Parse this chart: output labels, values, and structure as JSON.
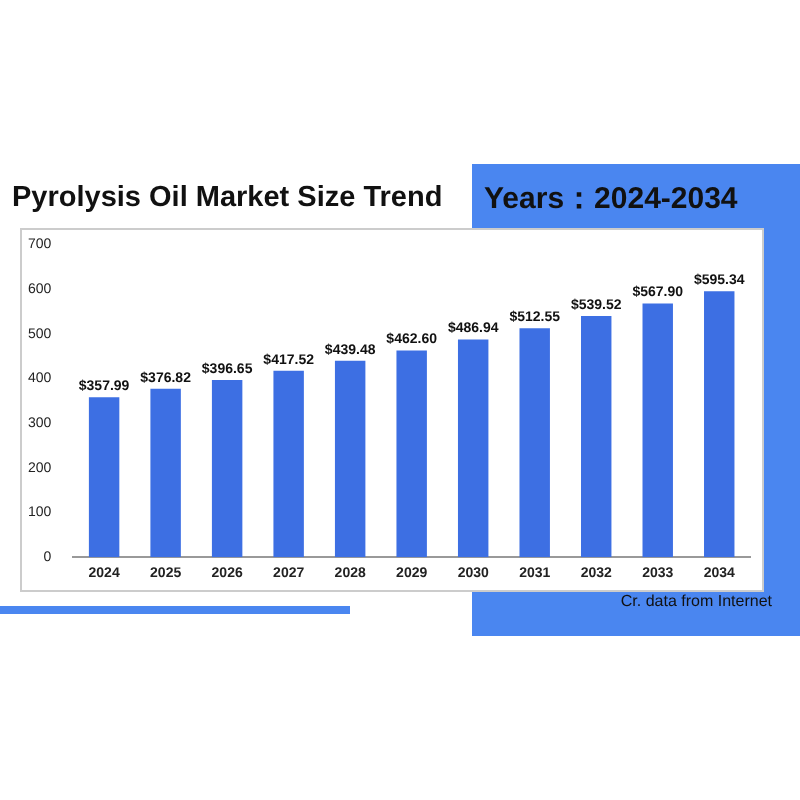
{
  "chart_data": {
    "type": "bar",
    "title": "Pyrolysis Oil Market Size Trend",
    "subtitle": "Years：2024-2034",
    "categories": [
      "2024",
      "2025",
      "2026",
      "2027",
      "2028",
      "2029",
      "2030",
      "2031",
      "2032",
      "2033",
      "2034"
    ],
    "values": [
      357.99,
      376.82,
      396.65,
      417.52,
      439.48,
      462.6,
      486.94,
      512.55,
      539.52,
      567.9,
      595.34
    ],
    "value_labels": [
      "$357.99",
      "$376.82",
      "$396.65",
      "$417.52",
      "$439.48",
      "$462.60",
      "$486.94",
      "$512.55",
      "$539.52",
      "$567.90",
      "$595.34"
    ],
    "color": "#3d6fe3",
    "ylim": [
      0,
      700
    ],
    "yticks": [
      0,
      100,
      200,
      300,
      400,
      500,
      600,
      700
    ],
    "grid": false,
    "legend": false,
    "annotations": [
      "Cr. data from Internet"
    ]
  }
}
